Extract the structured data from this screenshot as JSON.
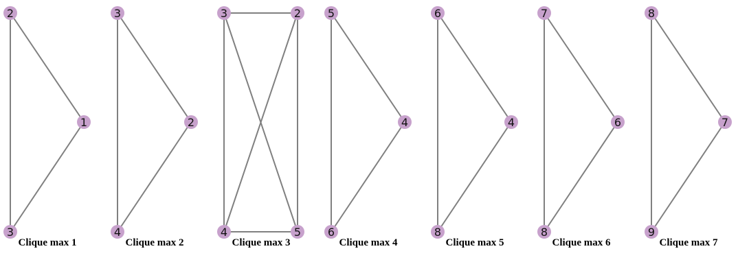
{
  "colors": {
    "node_fill": "#c7a1cc",
    "edge": "#808080",
    "label": "#111111",
    "caption": "#000000",
    "background": "#ffffff"
  },
  "graphs": [
    {
      "caption": "Clique max 1",
      "nodes": [
        "2",
        "1",
        "3"
      ],
      "edges": [
        [
          "2",
          "3"
        ],
        [
          "2",
          "1"
        ],
        [
          "1",
          "3"
        ]
      ]
    },
    {
      "caption": "Clique max 2",
      "nodes": [
        "3",
        "2",
        "4"
      ],
      "edges": [
        [
          "3",
          "4"
        ],
        [
          "3",
          "2"
        ],
        [
          "2",
          "4"
        ]
      ]
    },
    {
      "caption": "Clique max 3",
      "nodes": [
        "3",
        "2",
        "4",
        "5"
      ],
      "edges": [
        [
          "3",
          "2"
        ],
        [
          "3",
          "4"
        ],
        [
          "3",
          "5"
        ],
        [
          "2",
          "4"
        ],
        [
          "2",
          "5"
        ],
        [
          "4",
          "5"
        ]
      ]
    },
    {
      "caption": "Clique max 4",
      "nodes": [
        "5",
        "4",
        "6"
      ],
      "edges": [
        [
          "5",
          "6"
        ],
        [
          "5",
          "4"
        ],
        [
          "4",
          "6"
        ]
      ]
    },
    {
      "caption": "Clique max 5",
      "nodes": [
        "6",
        "4",
        "8"
      ],
      "edges": [
        [
          "6",
          "8"
        ],
        [
          "6",
          "4"
        ],
        [
          "4",
          "8"
        ]
      ]
    },
    {
      "caption": "Clique max 6",
      "nodes": [
        "7",
        "6",
        "8"
      ],
      "edges": [
        [
          "7",
          "8"
        ],
        [
          "7",
          "6"
        ],
        [
          "6",
          "8"
        ]
      ]
    },
    {
      "caption": "Clique max 7",
      "nodes": [
        "8",
        "7",
        "9"
      ],
      "edges": [
        [
          "8",
          "9"
        ],
        [
          "8",
          "7"
        ],
        [
          "7",
          "9"
        ]
      ]
    }
  ]
}
